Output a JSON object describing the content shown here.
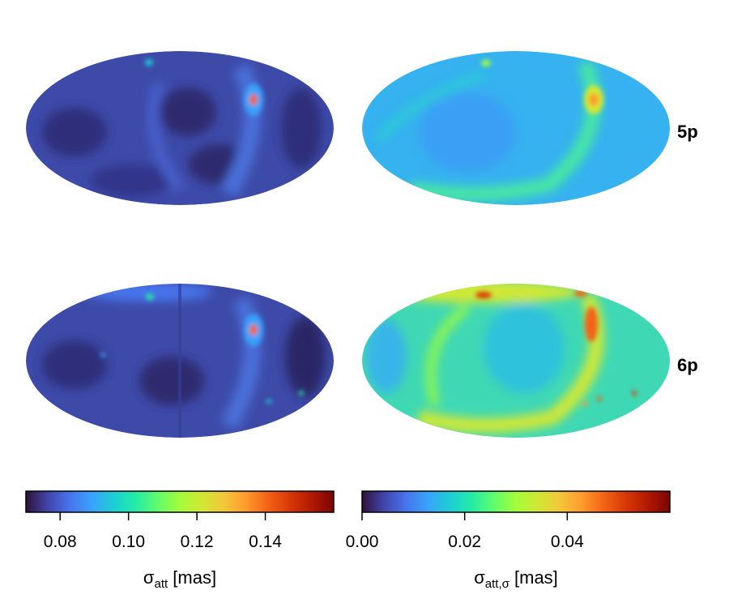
{
  "chart_data": {
    "type": "heatmap",
    "projection": "mollweide",
    "rows": [
      {
        "label": "5p"
      },
      {
        "label": "6p"
      }
    ],
    "columns": [
      {
        "quantity": "σ_att",
        "colorbar": {
          "label_main": "σ",
          "label_sub": "att",
          "label_unit": " [mas]",
          "range": [
            0.07,
            0.16
          ],
          "ticks": [
            0.08,
            0.1,
            0.12,
            0.14
          ],
          "tick_labels": [
            "0.08",
            "0.10",
            "0.12",
            "0.14"
          ]
        }
      },
      {
        "quantity": "σ_att,σ",
        "colorbar": {
          "label_main": "σ",
          "label_sub": "att,σ",
          "label_unit": " [mas]",
          "range": [
            0.0,
            0.06
          ],
          "ticks": [
            0.0,
            0.02,
            0.04
          ],
          "tick_labels": [
            "0.00",
            "0.02",
            "0.04"
          ]
        }
      }
    ],
    "colormap": "turbo",
    "colormap_stops": [
      "#30123b",
      "#4145ab",
      "#4675ed",
      "#39a2fc",
      "#1bcfd4",
      "#24eca6",
      "#61fc6c",
      "#a4fc3b",
      "#d1e834",
      "#f3c63a",
      "#fe9b2d",
      "#f36315",
      "#d93806",
      "#b11901",
      "#7a0402"
    ]
  }
}
